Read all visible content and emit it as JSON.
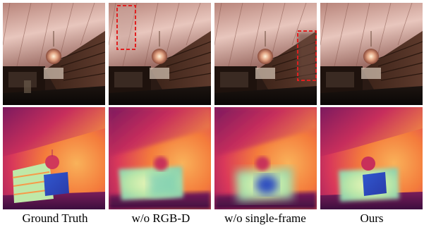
{
  "figure": {
    "columns": [
      {
        "id": "gt",
        "caption": "Ground Truth"
      },
      {
        "id": "no-rgbd",
        "caption": "w/o RGB-D"
      },
      {
        "id": "no-single-frame",
        "caption": "w/o single-frame"
      },
      {
        "id": "ours",
        "caption": "Ours"
      }
    ],
    "rows": [
      "rgb-render",
      "depth-map"
    ],
    "highlight_color": "#e02020",
    "depth_colormap": [
      "#f9f3b0",
      "#b7e4a6",
      "#6fc5ad",
      "#2b6fd0",
      "#3b3db8",
      "#6b1b6a",
      "#d93a5a",
      "#f78a3a"
    ]
  }
}
